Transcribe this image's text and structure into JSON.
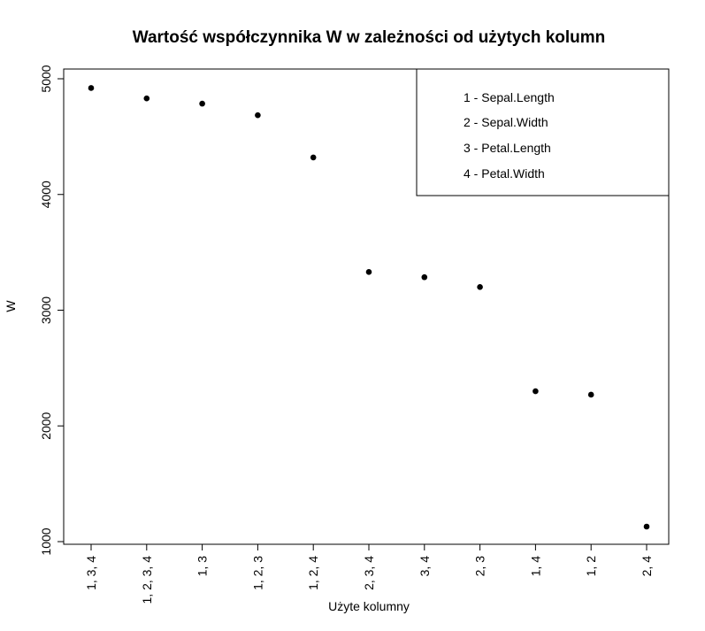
{
  "chart_data": {
    "type": "scatter",
    "title": "Wartość współczynnika W w zależności od użytych kolumn",
    "xlabel": "Użyte kolumny",
    "ylabel": "W",
    "categories": [
      "1, 3, 4",
      "1, 2, 3, 4",
      "1, 3",
      "1, 2, 3",
      "1, 2, 4",
      "2, 3, 4",
      "3, 4",
      "2, 3",
      "1, 4",
      "1, 2",
      "2, 4"
    ],
    "values": [
      4920,
      4830,
      4785,
      4685,
      4320,
      3330,
      3285,
      3200,
      2300,
      2270,
      1130
    ],
    "yticks": [
      "1000",
      "2000",
      "3000",
      "4000",
      "5000"
    ],
    "ylim": [
      1000,
      5000
    ],
    "grid": false,
    "point_color": "#000000",
    "legend": {
      "position": "top-right",
      "items": [
        "1 -  Sepal.Length",
        "2 -  Sepal.Width",
        "3 -  Petal.Length",
        "4 -  Petal.Width"
      ]
    }
  }
}
